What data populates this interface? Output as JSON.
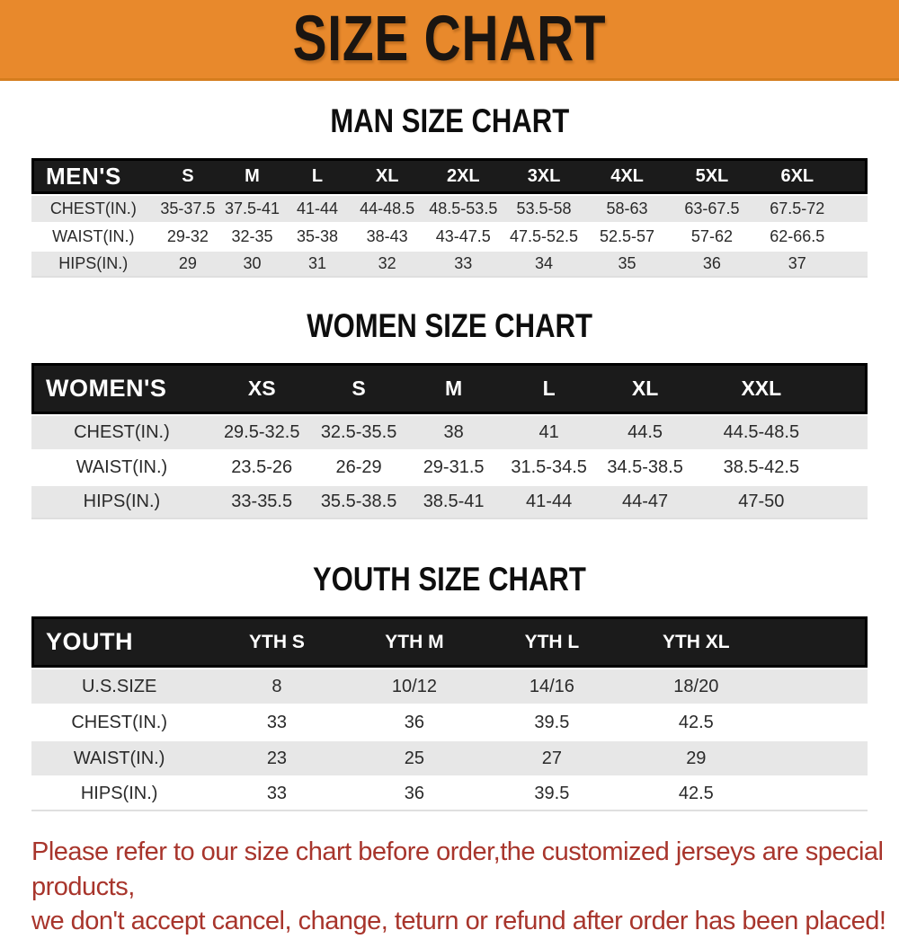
{
  "banner": {
    "title": "SIZE CHART",
    "bg_color": "#E8892C",
    "text_color": "#1A1511"
  },
  "sections": [
    {
      "id": "men",
      "title": "MAN SIZE CHART",
      "corner_label": "MEN'S",
      "columns": [
        "S",
        "M",
        "L",
        "XL",
        "2XL",
        "3XL",
        "4XL",
        "5XL",
        "6XL"
      ],
      "rows": [
        {
          "label": "CHEST(IN.)",
          "values": [
            "35-37.5",
            "37.5-41",
            "41-44",
            "44-48.5",
            "48.5-53.5",
            "53.5-58",
            "58-63",
            "63-67.5",
            "67.5-72"
          ]
        },
        {
          "label": "WAIST(IN.)",
          "values": [
            "29-32",
            "32-35",
            "35-38",
            "38-43",
            "43-47.5",
            "47.5-52.5",
            "52.5-57",
            "57-62",
            "62-66.5"
          ]
        },
        {
          "label": "HIPS(IN.)",
          "values": [
            "29",
            "30",
            "31",
            "32",
            "33",
            "34",
            "35",
            "36",
            "37"
          ]
        }
      ]
    },
    {
      "id": "women",
      "title": "WOMEN SIZE CHART",
      "corner_label": "WOMEN'S",
      "columns": [
        "XS",
        "S",
        "M",
        "L",
        "XL",
        "XXL"
      ],
      "rows": [
        {
          "label": "CHEST(IN.)",
          "values": [
            "29.5-32.5",
            "32.5-35.5",
            "38",
            "41",
            "44.5",
            "44.5-48.5"
          ]
        },
        {
          "label": "WAIST(IN.)",
          "values": [
            "23.5-26",
            "26-29",
            "29-31.5",
            "31.5-34.5",
            "34.5-38.5",
            "38.5-42.5"
          ]
        },
        {
          "label": "HIPS(IN.)",
          "values": [
            "33-35.5",
            "35.5-38.5",
            "38.5-41",
            "41-44",
            "44-47",
            "47-50"
          ]
        }
      ]
    },
    {
      "id": "youth",
      "title": "YOUTH SIZE CHART",
      "corner_label": "YOUTH",
      "columns": [
        "YTH S",
        "YTH M",
        "YTH L",
        "YTH XL"
      ],
      "rows": [
        {
          "label": "U.S.SIZE",
          "values": [
            "8",
            "10/12",
            "14/16",
            "18/20"
          ]
        },
        {
          "label": "CHEST(IN.)",
          "values": [
            "33",
            "36",
            "39.5",
            "42.5"
          ]
        },
        {
          "label": "WAIST(IN.)",
          "values": [
            "23",
            "25",
            "27",
            "29"
          ]
        },
        {
          "label": "HIPS(IN.)",
          "values": [
            "33",
            "36",
            "39.5",
            "42.5"
          ]
        }
      ]
    }
  ],
  "footer": {
    "line1": "Please refer to our size chart before order,the customized jerseys are special products,",
    "line2": "we don't accept cancel, change, teturn or refund after order has been placed!",
    "text_color": "#A8352C"
  }
}
